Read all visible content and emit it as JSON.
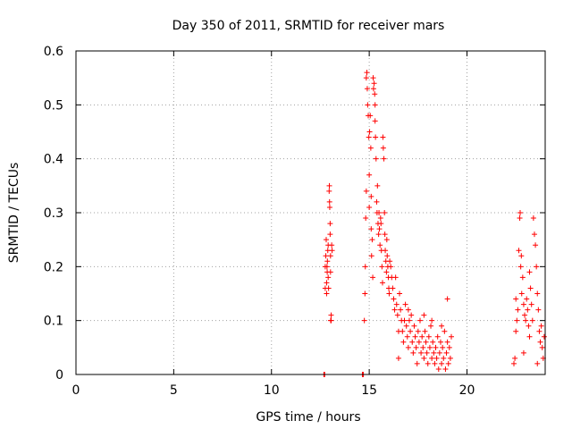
{
  "chart_data": {
    "type": "scatter",
    "title": "Day 350 of 2011, SRMTID for receiver mars",
    "xlabel": "GPS time / hours",
    "ylabel": "SRMTID / TECUs",
    "xlim": [
      0,
      24
    ],
    "ylim": [
      0,
      0.6
    ],
    "xticks": [
      0,
      5,
      10,
      15,
      20
    ],
    "yticks": [
      0,
      0.1,
      0.2,
      0.3,
      0.4,
      0.5,
      0.6
    ],
    "grid": true,
    "marker": "+",
    "color": "#ff0000",
    "series": [
      {
        "name": "SRMTID",
        "points": [
          [
            12.68,
            0.0
          ],
          [
            12.72,
            0.0
          ],
          [
            14.65,
            0.0
          ],
          [
            14.7,
            0.0
          ],
          [
            12.75,
            0.16
          ],
          [
            12.75,
            0.2
          ],
          [
            12.78,
            0.22
          ],
          [
            12.8,
            0.25
          ],
          [
            12.82,
            0.17
          ],
          [
            12.82,
            0.15
          ],
          [
            12.85,
            0.19
          ],
          [
            12.86,
            0.21
          ],
          [
            12.88,
            0.23
          ],
          [
            12.9,
            0.24
          ],
          [
            12.92,
            0.16
          ],
          [
            12.95,
            0.34
          ],
          [
            12.96,
            0.35
          ],
          [
            12.97,
            0.32
          ],
          [
            12.98,
            0.31
          ],
          [
            13.0,
            0.28
          ],
          [
            13.0,
            0.26
          ],
          [
            13.02,
            0.22
          ],
          [
            13.03,
            0.1
          ],
          [
            13.05,
            0.11
          ],
          [
            13.05,
            0.1
          ],
          [
            13.08,
            0.24
          ],
          [
            13.1,
            0.23
          ],
          [
            12.9,
            0.18
          ],
          [
            13.02,
            0.19
          ],
          [
            12.84,
            0.2
          ],
          [
            14.75,
            0.1
          ],
          [
            14.78,
            0.15
          ],
          [
            14.8,
            0.2
          ],
          [
            14.82,
            0.29
          ],
          [
            14.85,
            0.34
          ],
          [
            14.85,
            0.55
          ],
          [
            14.88,
            0.56
          ],
          [
            14.9,
            0.53
          ],
          [
            14.92,
            0.5
          ],
          [
            14.95,
            0.48
          ],
          [
            14.98,
            0.44
          ],
          [
            15.0,
            0.37
          ],
          [
            15.0,
            0.31
          ],
          [
            15.02,
            0.45
          ],
          [
            15.05,
            0.48
          ],
          [
            15.08,
            0.42
          ],
          [
            15.1,
            0.33
          ],
          [
            15.1,
            0.27
          ],
          [
            15.12,
            0.22
          ],
          [
            15.15,
            0.25
          ],
          [
            15.18,
            0.18
          ],
          [
            15.2,
            0.55
          ],
          [
            15.22,
            0.53
          ],
          [
            15.25,
            0.54
          ],
          [
            15.28,
            0.52
          ],
          [
            15.3,
            0.5
          ],
          [
            15.3,
            0.47
          ],
          [
            15.32,
            0.44
          ],
          [
            15.35,
            0.4
          ],
          [
            15.38,
            0.32
          ],
          [
            15.4,
            0.3
          ],
          [
            15.42,
            0.35
          ],
          [
            15.45,
            0.28
          ],
          [
            15.48,
            0.26
          ],
          [
            15.5,
            0.3
          ],
          [
            15.52,
            0.27
          ],
          [
            15.55,
            0.24
          ],
          [
            15.58,
            0.29
          ],
          [
            15.6,
            0.28
          ],
          [
            15.62,
            0.23
          ],
          [
            15.65,
            0.2
          ],
          [
            15.68,
            0.17
          ],
          [
            15.7,
            0.44
          ],
          [
            15.72,
            0.42
          ],
          [
            15.75,
            0.4
          ],
          [
            15.78,
            0.3
          ],
          [
            15.8,
            0.26
          ],
          [
            15.82,
            0.23
          ],
          [
            15.85,
            0.21
          ],
          [
            15.88,
            0.19
          ],
          [
            15.9,
            0.25
          ],
          [
            15.92,
            0.22
          ],
          [
            15.95,
            0.2
          ],
          [
            15.98,
            0.18
          ],
          [
            16.0,
            0.16
          ],
          [
            16.02,
            0.15
          ],
          [
            16.05,
            0.21
          ],
          [
            16.1,
            0.2
          ],
          [
            16.15,
            0.18
          ],
          [
            16.2,
            0.16
          ],
          [
            16.25,
            0.14
          ],
          [
            16.3,
            0.12
          ],
          [
            16.35,
            0.18
          ],
          [
            16.4,
            0.13
          ],
          [
            16.45,
            0.11
          ],
          [
            16.5,
            0.08
          ],
          [
            16.55,
            0.15
          ],
          [
            16.6,
            0.12
          ],
          [
            16.65,
            0.1
          ],
          [
            16.7,
            0.08
          ],
          [
            16.75,
            0.06
          ],
          [
            16.8,
            0.1
          ],
          [
            16.85,
            0.13
          ],
          [
            16.9,
            0.09
          ],
          [
            16.95,
            0.07
          ],
          [
            17.0,
            0.05
          ],
          [
            17.05,
            0.1
          ],
          [
            17.1,
            0.08
          ],
          [
            17.15,
            0.11
          ],
          [
            17.2,
            0.06
          ],
          [
            17.25,
            0.04
          ],
          [
            17.3,
            0.09
          ],
          [
            17.35,
            0.07
          ],
          [
            17.4,
            0.05
          ],
          [
            17.45,
            0.02
          ],
          [
            17.5,
            0.08
          ],
          [
            17.55,
            0.06
          ],
          [
            17.6,
            0.1
          ],
          [
            17.65,
            0.04
          ],
          [
            17.7,
            0.07
          ],
          [
            17.75,
            0.05
          ],
          [
            17.8,
            0.03
          ],
          [
            17.85,
            0.08
          ],
          [
            17.9,
            0.06
          ],
          [
            17.95,
            0.04
          ],
          [
            18.0,
            0.02
          ],
          [
            18.05,
            0.07
          ],
          [
            18.1,
            0.05
          ],
          [
            18.15,
            0.09
          ],
          [
            18.2,
            0.03
          ],
          [
            18.25,
            0.06
          ],
          [
            18.3,
            0.04
          ],
          [
            18.35,
            0.02
          ],
          [
            18.4,
            0.05
          ],
          [
            18.45,
            0.03
          ],
          [
            18.5,
            0.07
          ],
          [
            18.55,
            0.01
          ],
          [
            18.6,
            0.04
          ],
          [
            18.65,
            0.06
          ],
          [
            18.7,
            0.02
          ],
          [
            18.75,
            0.05
          ],
          [
            18.8,
            0.03
          ],
          [
            18.85,
            0.08
          ],
          [
            18.9,
            0.01
          ],
          [
            18.95,
            0.04
          ],
          [
            19.0,
            0.06
          ],
          [
            19.05,
            0.02
          ],
          [
            19.1,
            0.05
          ],
          [
            19.15,
            0.03
          ],
          [
            19.2,
            0.07
          ],
          [
            16.5,
            0.03
          ],
          [
            17.0,
            0.12
          ],
          [
            17.8,
            0.11
          ],
          [
            18.2,
            0.1
          ],
          [
            18.7,
            0.09
          ],
          [
            19.0,
            0.14
          ],
          [
            22.4,
            0.02
          ],
          [
            22.45,
            0.03
          ],
          [
            22.5,
            0.08
          ],
          [
            22.55,
            0.1
          ],
          [
            22.6,
            0.12
          ],
          [
            22.65,
            0.23
          ],
          [
            22.7,
            0.29
          ],
          [
            22.72,
            0.3
          ],
          [
            22.75,
            0.2
          ],
          [
            22.78,
            0.22
          ],
          [
            22.8,
            0.15
          ],
          [
            22.85,
            0.18
          ],
          [
            22.9,
            0.13
          ],
          [
            22.95,
            0.11
          ],
          [
            23.0,
            0.1
          ],
          [
            23.05,
            0.14
          ],
          [
            23.1,
            0.12
          ],
          [
            23.15,
            0.09
          ],
          [
            23.2,
            0.07
          ],
          [
            23.25,
            0.16
          ],
          [
            23.3,
            0.13
          ],
          [
            23.35,
            0.1
          ],
          [
            23.4,
            0.29
          ],
          [
            23.45,
            0.26
          ],
          [
            23.5,
            0.24
          ],
          [
            23.55,
            0.2
          ],
          [
            23.6,
            0.15
          ],
          [
            23.65,
            0.12
          ],
          [
            23.7,
            0.08
          ],
          [
            23.75,
            0.06
          ],
          [
            23.8,
            0.09
          ],
          [
            23.85,
            0.05
          ],
          [
            23.9,
            0.03
          ],
          [
            23.95,
            0.07
          ],
          [
            22.5,
            0.14
          ],
          [
            22.9,
            0.04
          ],
          [
            23.2,
            0.19
          ],
          [
            23.6,
            0.02
          ]
        ]
      }
    ]
  }
}
